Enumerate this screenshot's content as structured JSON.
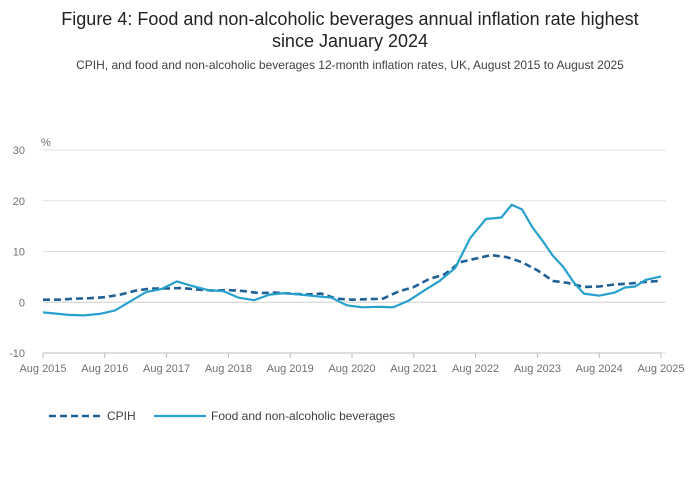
{
  "figure": {
    "title_line1": "Figure 4: Food and non-alcoholic beverages annual inflation rate highest",
    "title_line2": "since January 2024",
    "subtitle": "CPIH, and food and non-alcoholic beverages 12-month inflation rates, UK, August 2015 to August 2025"
  },
  "colors": {
    "cpih": "#206095",
    "food": "#27a0cc",
    "grid": "#e0e0e0",
    "axis": "#bbbbbb"
  },
  "chart_data": {
    "type": "line",
    "title": "Figure 4: Food and non-alcoholic beverages annual inflation rate highest since January 2024",
    "subtitle": "CPIH, and food and non-alcoholic beverages 12-month inflation rates, UK, August 2015 to August 2025",
    "ylabel": "%",
    "xlabel": "",
    "ylim": [
      -10,
      30
    ],
    "yticks": [
      "30",
      "20",
      "10",
      "0",
      "-10"
    ],
    "ytick_values": [
      30,
      20,
      10,
      0,
      -10
    ],
    "xlim": [
      "2015-08",
      "2025-08"
    ],
    "xticks": [
      "Aug 2015",
      "Aug 2016",
      "Aug 2017",
      "Aug 2018",
      "Aug 2019",
      "Aug 2020",
      "Aug 2021",
      "Aug 2022",
      "Aug 2023",
      "Aug 2024",
      "Aug 2025"
    ],
    "xtick_values": [
      "2015-08",
      "2016-08",
      "2017-08",
      "2018-08",
      "2019-08",
      "2020-08",
      "2021-08",
      "2022-08",
      "2023-08",
      "2024-08",
      "2025-08"
    ],
    "grid": true,
    "legend": "bottom-left",
    "series": [
      {
        "name": "CPIH",
        "style": "dashed",
        "points": [
          [
            "2015-08",
            0.5
          ],
          [
            "2015-11",
            0.5
          ],
          [
            "2016-02",
            0.7
          ],
          [
            "2016-05",
            0.8
          ],
          [
            "2016-08",
            1.0
          ],
          [
            "2016-11",
            1.5
          ],
          [
            "2017-02",
            2.3
          ],
          [
            "2017-05",
            2.7
          ],
          [
            "2017-08",
            2.7
          ],
          [
            "2017-11",
            2.8
          ],
          [
            "2018-02",
            2.5
          ],
          [
            "2018-05",
            2.3
          ],
          [
            "2018-08",
            2.4
          ],
          [
            "2018-11",
            2.2
          ],
          [
            "2019-02",
            1.8
          ],
          [
            "2019-05",
            1.9
          ],
          [
            "2019-08",
            1.7
          ],
          [
            "2019-11",
            1.5
          ],
          [
            "2020-02",
            1.7
          ],
          [
            "2020-05",
            0.7
          ],
          [
            "2020-08",
            0.5
          ],
          [
            "2020-11",
            0.6
          ],
          [
            "2021-02",
            0.7
          ],
          [
            "2021-05",
            2.1
          ],
          [
            "2021-08",
            3.0
          ],
          [
            "2021-11",
            4.6
          ],
          [
            "2022-02",
            5.5
          ],
          [
            "2022-05",
            7.9
          ],
          [
            "2022-08",
            8.6
          ],
          [
            "2022-11",
            9.3
          ],
          [
            "2023-02",
            8.9
          ],
          [
            "2023-05",
            7.9
          ],
          [
            "2023-08",
            6.3
          ],
          [
            "2023-11",
            4.2
          ],
          [
            "2024-02",
            3.8
          ],
          [
            "2024-05",
            3.0
          ],
          [
            "2024-08",
            3.1
          ],
          [
            "2024-11",
            3.5
          ],
          [
            "2025-02",
            3.7
          ],
          [
            "2025-05",
            4.0
          ],
          [
            "2025-08",
            4.2
          ]
        ]
      },
      {
        "name": "Food and non-alcoholic beverages",
        "style": "solid",
        "points": [
          [
            "2015-08",
            -2.0
          ],
          [
            "2015-10",
            -2.2
          ],
          [
            "2016-01",
            -2.5
          ],
          [
            "2016-04",
            -2.6
          ],
          [
            "2016-07",
            -2.3
          ],
          [
            "2016-10",
            -1.6
          ],
          [
            "2017-01",
            0.2
          ],
          [
            "2017-04",
            2.0
          ],
          [
            "2017-07",
            2.6
          ],
          [
            "2017-10",
            4.1
          ],
          [
            "2018-01",
            3.2
          ],
          [
            "2018-04",
            2.4
          ],
          [
            "2018-07",
            2.2
          ],
          [
            "2018-10",
            0.9
          ],
          [
            "2019-01",
            0.4
          ],
          [
            "2019-04",
            1.5
          ],
          [
            "2019-07",
            1.8
          ],
          [
            "2019-10",
            1.5
          ],
          [
            "2020-01",
            1.2
          ],
          [
            "2020-04",
            0.9
          ],
          [
            "2020-07",
            -0.6
          ],
          [
            "2020-10",
            -1.0
          ],
          [
            "2021-01",
            -0.9
          ],
          [
            "2021-04",
            -1.0
          ],
          [
            "2021-07",
            0.3
          ],
          [
            "2021-10",
            2.3
          ],
          [
            "2022-01",
            4.2
          ],
          [
            "2022-04",
            6.7
          ],
          [
            "2022-07",
            12.7
          ],
          [
            "2022-10",
            16.4
          ],
          [
            "2023-01",
            16.7
          ],
          [
            "2023-03",
            19.2
          ],
          [
            "2023-05",
            18.3
          ],
          [
            "2023-07",
            14.8
          ],
          [
            "2023-09",
            12.1
          ],
          [
            "2023-11",
            9.2
          ],
          [
            "2024-01",
            7.0
          ],
          [
            "2024-03",
            4.0
          ],
          [
            "2024-05",
            1.7
          ],
          [
            "2024-08",
            1.3
          ],
          [
            "2024-11",
            1.9
          ],
          [
            "2025-01",
            2.9
          ],
          [
            "2025-03",
            3.1
          ],
          [
            "2025-05",
            4.4
          ],
          [
            "2025-08",
            5.1
          ]
        ]
      }
    ]
  }
}
